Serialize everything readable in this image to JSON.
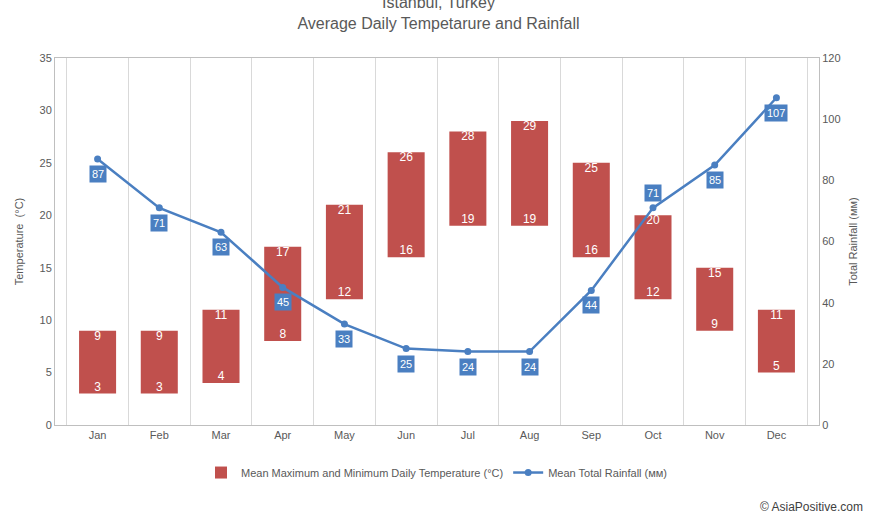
{
  "chart_data": {
    "type": "bar",
    "title": "Istanbul, Turkey",
    "subtitle": "Average Daily Tempetarure and Rainfall",
    "categories": [
      "Jan",
      "Feb",
      "Mar",
      "Apr",
      "May",
      "Jun",
      "Jul",
      "Aug",
      "Sep",
      "Oct",
      "Nov",
      "Dec"
    ],
    "series": [
      {
        "name": "Mean Maximum and Minimum Daily Temperature (°C)",
        "type": "bar",
        "color": "#c0504d",
        "max": [
          9,
          9,
          11,
          17,
          21,
          26,
          28,
          29,
          25,
          20,
          15,
          11
        ],
        "min": [
          3,
          3,
          4,
          8,
          12,
          16,
          19,
          19,
          16,
          12,
          9,
          5
        ]
      },
      {
        "name": "Mean Total Rainfall (мм)",
        "type": "line",
        "marker": "circle",
        "color": "#4a7fc1",
        "axis": "y2",
        "values": [
          87,
          71,
          63,
          45,
          33,
          25,
          24,
          24,
          44,
          71,
          85,
          107
        ]
      }
    ],
    "ylabel": "Temperature  (°C)",
    "y2label": "Total Rainfall (мм)",
    "ylim": [
      0,
      35
    ],
    "yticks": [
      0,
      5,
      10,
      15,
      20,
      25,
      30,
      35
    ],
    "y2lim": [
      0,
      120
    ],
    "y2ticks": [
      0,
      20,
      40,
      60,
      80,
      100,
      120
    ],
    "grid": true,
    "legend": "bottom",
    "data_labels": true,
    "annotations": [
      "© AsiaPositive.com"
    ]
  }
}
